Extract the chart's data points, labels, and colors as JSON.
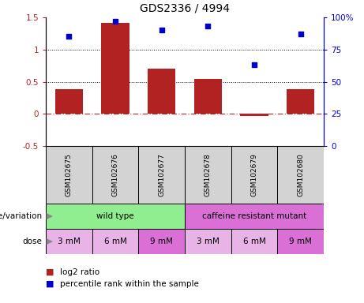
{
  "title": "GDS2336 / 4994",
  "samples": [
    "GSM102675",
    "GSM102676",
    "GSM102677",
    "GSM102678",
    "GSM102679",
    "GSM102680"
  ],
  "log2_ratio": [
    0.38,
    1.42,
    0.7,
    0.54,
    -0.03,
    0.38
  ],
  "percentile_rank": [
    85,
    97,
    90,
    93,
    63,
    87
  ],
  "bar_color": "#b22222",
  "dot_color": "#0000cc",
  "ylim_left": [
    -0.5,
    1.5
  ],
  "ylim_right": [
    0,
    100
  ],
  "yticks_left": [
    -0.5,
    0.0,
    0.5,
    1.0,
    1.5
  ],
  "ytick_labels_left": [
    "-0.5",
    "0",
    "0.5",
    "1",
    "1.5"
  ],
  "yticks_right": [
    0,
    25,
    50,
    75,
    100
  ],
  "ytick_labels_right": [
    "0",
    "25",
    "50",
    "75",
    "100%"
  ],
  "hlines": [
    0.5,
    1.0
  ],
  "zero_line_y": 0.0,
  "genotype_groups": [
    {
      "label": "wild type",
      "color": "#90ee90",
      "span": [
        0,
        3
      ]
    },
    {
      "label": "caffeine resistant mutant",
      "color": "#da70d6",
      "span": [
        3,
        6
      ]
    }
  ],
  "doses": [
    "3 mM",
    "6 mM",
    "9 mM",
    "3 mM",
    "6 mM",
    "9 mM"
  ],
  "dose_colors": [
    "#e8b4e8",
    "#e8b4e8",
    "#da70d6",
    "#e8b4e8",
    "#e8b4e8",
    "#da70d6"
  ],
  "sample_bg": "#d3d3d3",
  "genotype_label": "genotype/variation",
  "dose_label": "dose",
  "legend_bar_label": "log2 ratio",
  "legend_dot_label": "percentile rank within the sample",
  "arrow_color": "#888888"
}
